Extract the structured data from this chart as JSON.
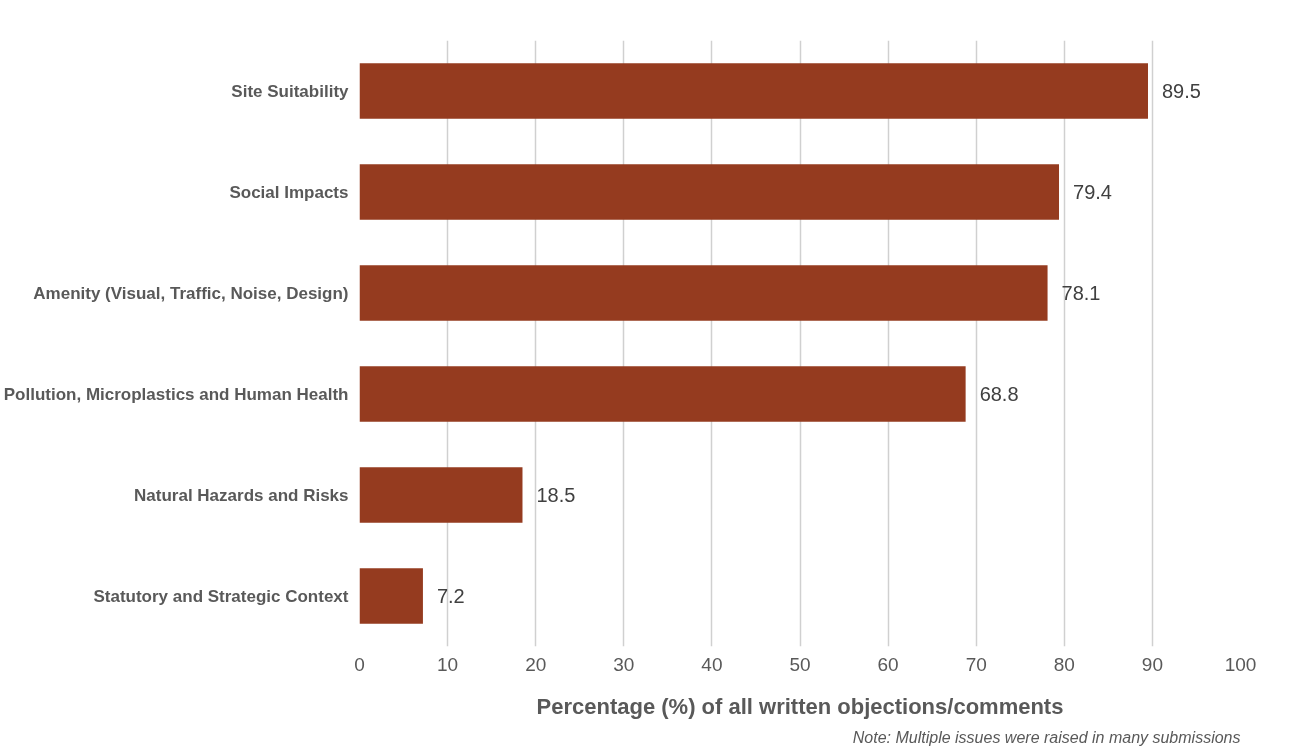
{
  "chart_data": {
    "type": "bar",
    "orientation": "horizontal",
    "categories": [
      "Site Suitability",
      "Social Impacts",
      "Amenity (Visual, Traffic, Noise, Design)",
      "Pollution, Microplastics and Human Health",
      "Natural Hazards and Risks",
      "Statutory and Strategic Context"
    ],
    "values": [
      89.5,
      79.4,
      78.1,
      68.8,
      18.5,
      7.2
    ],
    "color": "#953b1f",
    "xlim": [
      0,
      100
    ],
    "xticks": [
      0,
      10,
      20,
      30,
      40,
      50,
      60,
      70,
      80,
      90,
      100
    ],
    "xlabel": "Percentage (%) of all written objections/comments",
    "annotations": [
      "Note: Multiple issues were raised in many submissions"
    ],
    "data_labels": true,
    "grid": "x"
  }
}
